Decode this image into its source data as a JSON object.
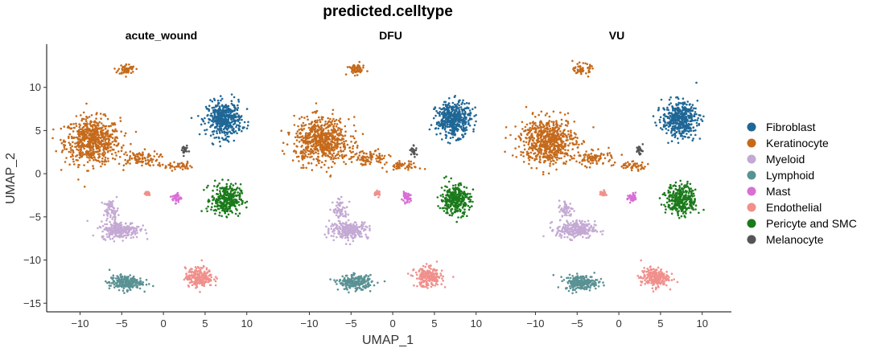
{
  "chart_data": {
    "type": "scatter",
    "title": "predicted.celltype",
    "xlabel": "UMAP_1",
    "ylabel": "UMAP_2",
    "xlim": [
      -14,
      13.5
    ],
    "ylim": [
      -16,
      15
    ],
    "xticks": [
      -10,
      -5,
      0,
      5,
      10
    ],
    "yticks": [
      -15,
      -10,
      -5,
      0,
      5,
      10
    ],
    "x_tick_labels": [
      "−10",
      "−5",
      "0",
      "5",
      "10"
    ],
    "y_tick_labels": [
      "−15",
      "−10",
      "−5",
      "0",
      "5",
      "10"
    ],
    "facets": [
      "acute_wound",
      "DFU",
      "VU"
    ],
    "legend": [
      {
        "name": "Fibroblast",
        "color": "#1F6796"
      },
      {
        "name": "Keratinocyte",
        "color": "#C56A1B"
      },
      {
        "name": "Myeloid",
        "color": "#C4A9D4"
      },
      {
        "name": "Lymphoid",
        "color": "#5A9294"
      },
      {
        "name": "Mast",
        "color": "#D86FD6"
      },
      {
        "name": "Endothelial",
        "color": "#F0908C"
      },
      {
        "name": "Pericyte and SMC",
        "color": "#1B7A1B"
      },
      {
        "name": "Melanocyte",
        "color": "#555555"
      }
    ],
    "clusters": [
      {
        "celltype": "Keratinocyte",
        "cx": -8.5,
        "cy": 3.8,
        "sx": 3.0,
        "sy": 2.4,
        "n": 650
      },
      {
        "celltype": "Keratinocyte",
        "cx": -4.4,
        "cy": 12.1,
        "sx": 0.9,
        "sy": 0.55,
        "n": 60
      },
      {
        "celltype": "Keratinocyte",
        "cx": -3.0,
        "cy": 1.8,
        "sx": 2.2,
        "sy": 0.8,
        "n": 90
      },
      {
        "celltype": "Keratinocyte",
        "cx": 1.5,
        "cy": 0.9,
        "sx": 1.8,
        "sy": 0.45,
        "n": 50
      },
      {
        "celltype": "Fibroblast",
        "cx": 7.3,
        "cy": 6.3,
        "sx": 1.9,
        "sy": 1.8,
        "n": 450
      },
      {
        "celltype": "Melanocyte",
        "cx": 2.5,
        "cy": 2.7,
        "sx": 0.35,
        "sy": 0.55,
        "n": 25
      },
      {
        "celltype": "Pericyte and SMC",
        "cx": 7.5,
        "cy": -3.0,
        "sx": 1.6,
        "sy": 1.6,
        "n": 320
      },
      {
        "celltype": "Mast",
        "cx": 1.6,
        "cy": -2.8,
        "sx": 0.5,
        "sy": 0.5,
        "n": 45
      },
      {
        "celltype": "Endothelial",
        "cx": -1.9,
        "cy": -2.3,
        "sx": 0.35,
        "sy": 0.3,
        "n": 25
      },
      {
        "celltype": "Myeloid",
        "cx": -5.2,
        "cy": -6.5,
        "sx": 2.1,
        "sy": 0.9,
        "n": 260
      },
      {
        "celltype": "Myeloid",
        "cx": -6.3,
        "cy": -4.2,
        "sx": 0.8,
        "sy": 1.0,
        "n": 60
      },
      {
        "celltype": "Lymphoid",
        "cx": -4.5,
        "cy": -12.6,
        "sx": 1.8,
        "sy": 0.75,
        "n": 230
      },
      {
        "celltype": "Endothelial",
        "cx": 4.3,
        "cy": -12.0,
        "sx": 1.5,
        "sy": 1.0,
        "n": 230
      }
    ]
  }
}
